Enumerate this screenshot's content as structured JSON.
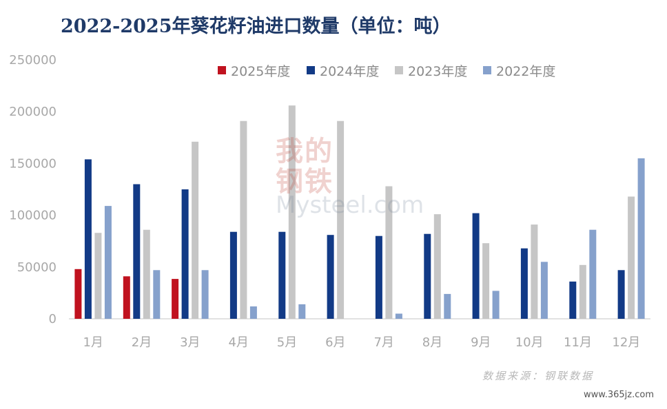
{
  "chart_data": {
    "type": "bar",
    "title": "2022-2025年葵花籽油进口数量（单位：吨）",
    "categories": [
      "1月",
      "2月",
      "3月",
      "4月",
      "5月",
      "6月",
      "7月",
      "8月",
      "9月",
      "10月",
      "11月",
      "12月"
    ],
    "y_ticks": [
      "250000",
      "200000",
      "150000",
      "100000",
      "50000",
      "0"
    ],
    "ylim": [
      0,
      250000
    ],
    "grid": false,
    "legend_position": "top",
    "series": [
      {
        "name": "2025年度",
        "color": "#c0121f",
        "values": [
          48000,
          41000,
          38500,
          null,
          null,
          null,
          null,
          null,
          null,
          null,
          null,
          null
        ]
      },
      {
        "name": "2024年度",
        "color": "#123a86",
        "values": [
          154000,
          130000,
          125000,
          84000,
          84000,
          81000,
          80000,
          82000,
          102000,
          68000,
          36000,
          47000
        ]
      },
      {
        "name": "2023年度",
        "color": "#c6c6c6",
        "values": [
          83000,
          86000,
          171000,
          191000,
          206000,
          191000,
          128000,
          101000,
          73000,
          91000,
          52000,
          118000
        ]
      },
      {
        "name": "2022年度",
        "color": "#86a1cc",
        "values": [
          109000,
          47000,
          47000,
          12000,
          14000,
          null,
          5000,
          24000,
          27000,
          55000,
          86000,
          155000
        ]
      }
    ]
  },
  "watermark": {
    "line1": "我的",
    "line2": "钢铁",
    "line3": "Mysteel.com"
  },
  "source": "数据来源：钢联数据",
  "site": "www.365jz.com"
}
